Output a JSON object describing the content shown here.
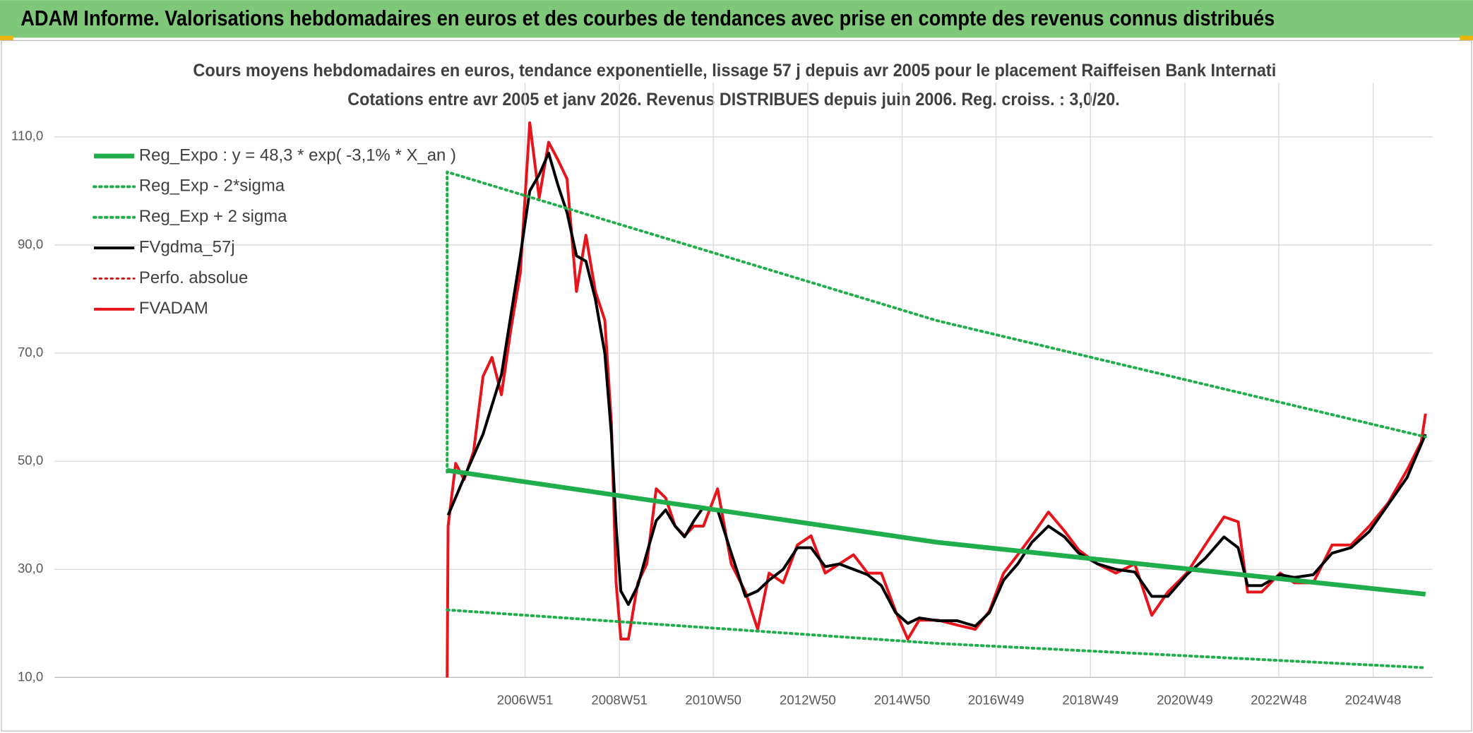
{
  "banner": "ADAM Informe. Valorisations hebdomadaires en euros et des courbes de tendances avec prise en compte des revenus connus distribués",
  "chart_data": {
    "type": "line",
    "title": "Cours moyens hebdomadaires en euros, tendance exponentielle, lissage 57 j depuis avr 2005 pour le placement Raiffeisen Bank Internati",
    "subtitle": "Cotations entre avr 2005 et janv 2026. Revenus DISTRIBUES depuis juin 2006. Reg. croiss. : 3,0/20.",
    "xlim": [
      1997,
      2026.2
    ],
    "ylim": [
      10,
      120
    ],
    "xticks": [
      {
        "value": 2006.97,
        "label": "2006W51"
      },
      {
        "value": 2008.97,
        "label": "2008W51"
      },
      {
        "value": 2010.96,
        "label": "2010W50"
      },
      {
        "value": 2012.96,
        "label": "2012W50"
      },
      {
        "value": 2014.96,
        "label": "2014W50"
      },
      {
        "value": 2016.95,
        "label": "2016W49"
      },
      {
        "value": 2018.95,
        "label": "2018W49"
      },
      {
        "value": 2020.95,
        "label": "2020W49"
      },
      {
        "value": 2022.94,
        "label": "2022W48"
      },
      {
        "value": 2024.94,
        "label": "2024W48"
      }
    ],
    "yticks": [
      {
        "value": 10,
        "label": "10,0"
      },
      {
        "value": 30,
        "label": "30,0"
      },
      {
        "value": 50,
        "label": "50,0"
      },
      {
        "value": 70,
        "label": "70,0"
      },
      {
        "value": 90,
        "label": "90,0"
      },
      {
        "value": 110,
        "label": "110,0"
      }
    ],
    "grid": true,
    "legend": "top-left",
    "series": [
      {
        "name": "Reg_Expo : y = 48,3 * exp( -3,1% *  X_an )",
        "color": "#1fae4b",
        "style": "solid",
        "width": 5,
        "x": [
          2005.32,
          2015.7,
          2026.05
        ],
        "values": [
          48.3,
          35.0,
          25.4
        ]
      },
      {
        "name": "Reg_Exp - 2*sigma",
        "color": "#1fae4b",
        "style": "dotted",
        "width": 3,
        "x": [
          2005.32,
          2015.7,
          2026.05
        ],
        "values": [
          22.5,
          16.3,
          11.8
        ]
      },
      {
        "name": "Reg_Exp + 2 sigma",
        "color": "#1fae4b",
        "style": "dotted",
        "width": 3,
        "x": [
          2005.32,
          2005.32,
          2015.7,
          2026.05
        ],
        "values": [
          48,
          103.5,
          76,
          54.5
        ]
      },
      {
        "name": "FVgdma_57j",
        "color": "#000000",
        "style": "solid",
        "width": 3,
        "x": [
          2005.34,
          2005.68,
          2006.08,
          2006.47,
          2006.87,
          2007.07,
          2007.27,
          2007.47,
          2007.67,
          2007.86,
          2008.06,
          2008.26,
          2008.46,
          2008.66,
          2008.8,
          2008.9,
          2009.0,
          2009.16,
          2009.36,
          2009.55,
          2009.75,
          2009.95,
          2010.15,
          2010.35,
          2010.55,
          2010.75,
          2011.05,
          2011.34,
          2011.64,
          2011.9,
          2012.14,
          2012.44,
          2012.74,
          2013.03,
          2013.33,
          2013.63,
          2013.93,
          2014.23,
          2014.52,
          2014.82,
          2015.08,
          2015.32,
          2015.72,
          2016.12,
          2016.51,
          2016.81,
          2017.11,
          2017.41,
          2017.71,
          2018.06,
          2018.4,
          2018.7,
          2019.1,
          2019.49,
          2019.89,
          2020.25,
          2020.59,
          2020.99,
          2021.38,
          2021.78,
          2022.08,
          2022.28,
          2022.58,
          2022.97,
          2023.27,
          2023.67,
          2024.07,
          2024.47,
          2024.86,
          2025.26,
          2025.66,
          2026.05
        ],
        "values": [
          40,
          47,
          55,
          66,
          88,
          100,
          103,
          107,
          101,
          96,
          88,
          87,
          80,
          70,
          55,
          38,
          26,
          23.5,
          27,
          33,
          39,
          41,
          38,
          36,
          39,
          41.5,
          41,
          33,
          25,
          26,
          28,
          30,
          34,
          34,
          30.5,
          31,
          30,
          29,
          27,
          22,
          20,
          21,
          20.5,
          20.5,
          19.5,
          22,
          28,
          31,
          35,
          38,
          36,
          33,
          31,
          30,
          29.5,
          25,
          25,
          29,
          32,
          36,
          34,
          27,
          27,
          29,
          28.5,
          29,
          33,
          34,
          37,
          42,
          47,
          55
        ]
      },
      {
        "name": "Perfo. absolue",
        "color": "#c00000",
        "style": "dotted",
        "width": 2,
        "x": [],
        "values": []
      },
      {
        "name": "FVADAM",
        "color": "#e8141b",
        "style": "solid",
        "width": 3,
        "x": [
          2005.32,
          2005.34,
          2005.5,
          2005.68,
          2005.88,
          2006.08,
          2006.27,
          2006.47,
          2006.67,
          2006.87,
          2007.07,
          2007.27,
          2007.47,
          2007.67,
          2007.86,
          2008.06,
          2008.26,
          2008.46,
          2008.66,
          2008.8,
          2008.9,
          2009.0,
          2009.16,
          2009.36,
          2009.55,
          2009.75,
          2009.95,
          2010.15,
          2010.35,
          2010.55,
          2010.75,
          2011.05,
          2011.34,
          2011.64,
          2011.9,
          2012.14,
          2012.44,
          2012.74,
          2013.03,
          2013.33,
          2013.63,
          2013.93,
          2014.23,
          2014.52,
          2014.82,
          2015.08,
          2015.32,
          2015.72,
          2016.12,
          2016.51,
          2016.81,
          2017.11,
          2017.41,
          2017.71,
          2018.06,
          2018.4,
          2018.7,
          2019.1,
          2019.49,
          2019.89,
          2020.25,
          2020.59,
          2020.99,
          2021.38,
          2021.78,
          2022.08,
          2022.28,
          2022.58,
          2022.97,
          2023.27,
          2023.67,
          2024.07,
          2024.47,
          2024.86,
          2025.26,
          2025.66,
          2025.96,
          2026.05
        ],
        "values": [
          10,
          38,
          49.6,
          46.6,
          51.8,
          65.7,
          69.2,
          62.3,
          74.4,
          84.8,
          112.6,
          98.7,
          109,
          105.7,
          102.2,
          81.4,
          91.8,
          81.4,
          76.1,
          57,
          27.5,
          17.1,
          17.1,
          27.5,
          31,
          44.9,
          43.2,
          38,
          36.2,
          38,
          38,
          44.9,
          31,
          25.8,
          18.9,
          29.3,
          27.5,
          34.5,
          36.2,
          29.3,
          31,
          32.7,
          29.3,
          29.3,
          22.3,
          17.1,
          20.6,
          20.6,
          19.7,
          18.9,
          22.3,
          29.3,
          32.7,
          36.2,
          40.6,
          37.1,
          33.6,
          31,
          29.3,
          31,
          21.5,
          25.8,
          29.3,
          34.5,
          39.7,
          38.8,
          25.8,
          25.8,
          29.3,
          27.5,
          27.5,
          34.5,
          34.5,
          38,
          42.3,
          48.4,
          53.6,
          58.8
        ]
      }
    ]
  }
}
